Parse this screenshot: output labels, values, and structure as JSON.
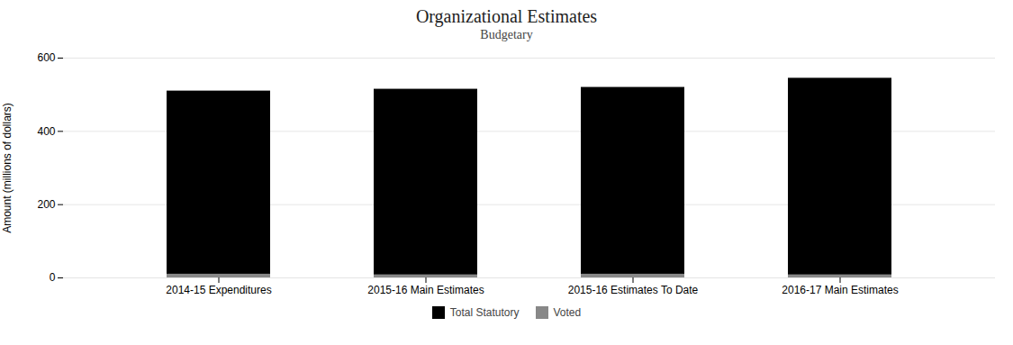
{
  "chart_data": {
    "type": "bar",
    "stacked": true,
    "title": "Organizational Estimates",
    "subtitle": "Budgetary",
    "ylabel": "Amount (millions of dollars)",
    "categories": [
      "2014-15 Expenditures",
      "2015-16 Main Estimates",
      "2015-16 Estimates To Date",
      "2016-17 Main Estimates"
    ],
    "series": [
      {
        "name": "Total Statutory",
        "color": "#000000",
        "values": [
          500,
          507,
          510,
          537
        ]
      },
      {
        "name": "Voted",
        "color": "#888888",
        "values": [
          10,
          8,
          10,
          8
        ]
      }
    ],
    "ylim": [
      0,
      600
    ],
    "yticks": [
      0,
      200,
      400,
      600
    ],
    "grid": true,
    "legend": "bottom"
  }
}
